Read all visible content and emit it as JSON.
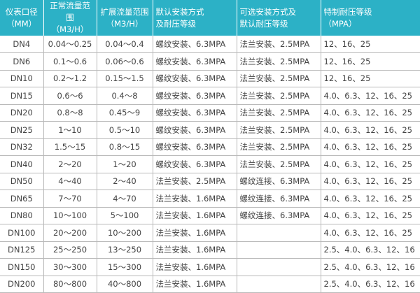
{
  "table": {
    "header": [
      [
        "仪表口径",
        "（MM）"
      ],
      [
        "正常流量范围",
        "（M3/H）"
      ],
      [
        "扩展流量范围",
        "（M3/H）"
      ],
      [
        "默认安装方式",
        "及耐压等级"
      ],
      [
        "可选安装方式及",
        "默认耐压等级"
      ],
      [
        "特制耐压等级",
        "（MPA）"
      ]
    ],
    "rows": [
      [
        "DN4",
        "0.04～0.25",
        "0.04～0.4",
        "螺纹安装、6.3MPA",
        "法兰安装、2.5MPA",
        "12、16、25"
      ],
      [
        "DN6",
        "0.1～0.6",
        "0.06～0.6",
        "螺纹安装、6.3MPA",
        "法兰安装、2.5MPA",
        "12、16、25"
      ],
      [
        "DN10",
        "0.2～1.2",
        "0.15～1.5",
        "螺纹安装、6.3MPA",
        "法兰安装、2.5MPA",
        "12、16、25"
      ],
      [
        "DN15",
        "0.6～6",
        "0.4～8",
        "螺纹安装、6.3MPA",
        "法兰安装、2.5MPA",
        "4.0、6.3、12、16、25"
      ],
      [
        "DN20",
        "0.8～8",
        "0.45～9",
        "螺纹安装、6.3MPA",
        "法兰安装、2.5MPA",
        "4.0、6.3、12、16、25"
      ],
      [
        "DN25",
        "1～10",
        "0.5～10",
        "螺纹安装、6.3MPA",
        "法兰安装、2.5MPA",
        "4.0、6.3、12、16、25"
      ],
      [
        "DN32",
        "1.5～15",
        "0.8～15",
        "螺纹安装、6.3MPA",
        "法兰安装、2.5MPA",
        "4.0、6.3、12、16、25"
      ],
      [
        "DN40",
        "2～20",
        "1～20",
        "螺纹安装、6.3MPA",
        "法兰安装、2.5MPA",
        "4.0、6.3、12、16、25"
      ],
      [
        "DN50",
        "4～40",
        "2～40",
        "法兰安装、2.5MPA",
        "螺纹连接、6.3MPA",
        "4.0、6.3、12、16、25"
      ],
      [
        "DN65",
        "7～70",
        "4～70",
        "法兰安装、1.6MPA",
        "螺纹连接、6.3MPA",
        "4.0、6.3、12、16、25"
      ],
      [
        "DN80",
        "10～100",
        "5～100",
        "法兰安装、1.6MPA",
        "螺纹连接、6.3MPA",
        "4.0、6.3、12、16、25"
      ],
      [
        "DN100",
        "20～200",
        "10～200",
        "法兰安装、1.6MPA",
        null,
        "4.0、6.3、12、16、25"
      ],
      [
        "DN125",
        "25～250",
        "13～250",
        "法兰安装、1.6MPA",
        null,
        "2.5、4.0、6.3、12、16"
      ],
      [
        "DN150",
        "30～300",
        "15～300",
        "法兰安装、1.6MPA",
        null,
        "2.5、4.0、6.3、12、16"
      ],
      [
        "DN200",
        "80～800",
        "40～800",
        "法兰安装、1.6MPA",
        null,
        "2.5、4.0、6.3、12、16"
      ]
    ]
  }
}
